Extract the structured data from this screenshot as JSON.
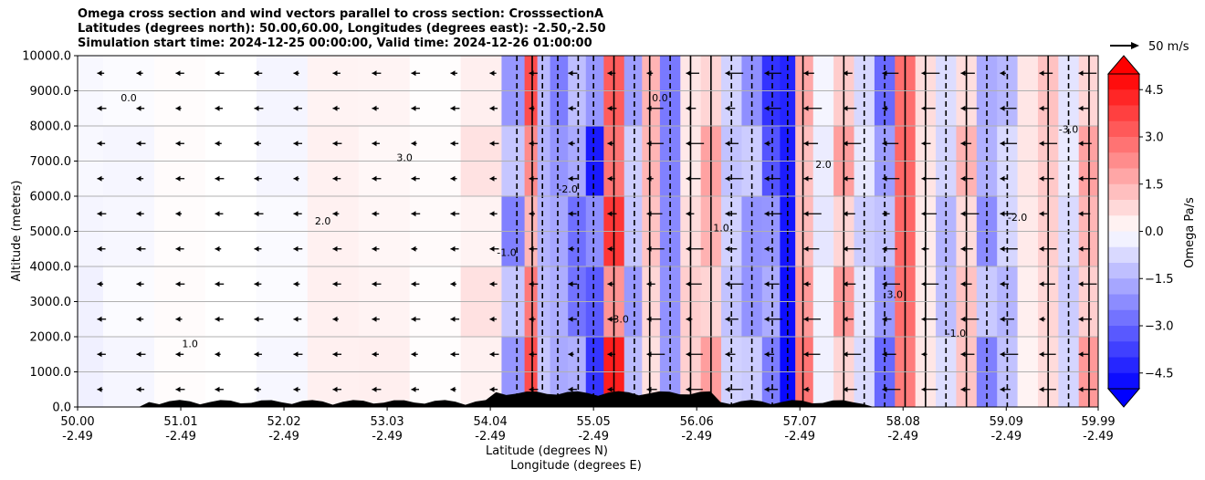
{
  "chart_data": {
    "type": "heatmap",
    "title_lines": [
      "Omega cross section and wind vectors parallel to cross section: CrosssectionA",
      "Latitudes (degrees north): 50.00,60.00, Longitudes (degrees east): -2.50,-2.50",
      "Simulation start time: 2024-12-25 00:00:00, Valid time: 2024-12-26 01:00:00"
    ],
    "ylabel": "Altitude (meters)",
    "xlabel_lines": [
      "Latitude (degrees N)",
      "Longitude (degrees E)"
    ],
    "x_ticks": [
      {
        "lat": "50.00",
        "lon": "-2.49",
        "v": 50.0
      },
      {
        "lat": "51.01",
        "lon": "-2.49",
        "v": 51.01
      },
      {
        "lat": "52.02",
        "lon": "-2.49",
        "v": 52.02
      },
      {
        "lat": "53.03",
        "lon": "-2.49",
        "v": 53.03
      },
      {
        "lat": "54.04",
        "lon": "-2.49",
        "v": 54.04
      },
      {
        "lat": "55.05",
        "lon": "-2.49",
        "v": 55.05
      },
      {
        "lat": "56.06",
        "lon": "-2.49",
        "v": 56.06
      },
      {
        "lat": "57.07",
        "lon": "-2.49",
        "v": 57.07
      },
      {
        "lat": "58.08",
        "lon": "-2.49",
        "v": 58.08
      },
      {
        "lat": "59.09",
        "lon": "-2.49",
        "v": 59.09
      },
      {
        "lat": "59.99",
        "lon": "-2.49",
        "v": 59.99
      }
    ],
    "y_ticks": [
      {
        "label": "0.0",
        "v": 0
      },
      {
        "label": "1000.0",
        "v": 1000
      },
      {
        "label": "2000.0",
        "v": 2000
      },
      {
        "label": "3000.0",
        "v": 3000
      },
      {
        "label": "4000.0",
        "v": 4000
      },
      {
        "label": "5000.0",
        "v": 5000
      },
      {
        "label": "6000.0",
        "v": 6000
      },
      {
        "label": "7000.0",
        "v": 7000
      },
      {
        "label": "8000.0",
        "v": 8000
      },
      {
        "label": "9000.0",
        "v": 9000
      },
      {
        "label": "10000.0",
        "v": 10000
      }
    ],
    "xlim": [
      50.0,
      59.99
    ],
    "ylim": [
      0,
      10000
    ],
    "grid": "horizontal",
    "colorbar": {
      "label": "Omega Pa/s",
      "ticks": [
        "4.5",
        "3.0",
        "1.5",
        "0.0",
        "−1.5",
        "−3.0",
        "−4.5"
      ],
      "tick_values": [
        4.5,
        3.0,
        1.5,
        0.0,
        -1.5,
        -3.0,
        -4.5
      ],
      "range": [
        -5.0,
        5.0
      ],
      "colormap": "bwr",
      "extend": "both"
    },
    "quiver_key": {
      "label": "50 m/s"
    },
    "contour_labels": [
      "0.0",
      "1.0",
      "2.0",
      "3.0",
      "-1.0",
      "-2.0",
      "-3.0"
    ],
    "omega_columns": [
      {
        "x": 50.0,
        "v": -0.3
      },
      {
        "x": 50.5,
        "v": -0.2
      },
      {
        "x": 51.0,
        "v": 0.1
      },
      {
        "x": 51.5,
        "v": 0.0
      },
      {
        "x": 52.0,
        "v": -0.2
      },
      {
        "x": 52.5,
        "v": 0.3
      },
      {
        "x": 53.0,
        "v": 0.4
      },
      {
        "x": 53.5,
        "v": 0.1
      },
      {
        "x": 54.0,
        "v": 0.6
      },
      {
        "x": 54.3,
        "v": -2.5
      },
      {
        "x": 54.45,
        "v": 3.5
      },
      {
        "x": 54.55,
        "v": -1.5
      },
      {
        "x": 54.7,
        "v": -4.0
      },
      {
        "x": 54.9,
        "v": -3.0
      },
      {
        "x": 55.05,
        "v": -4.5
      },
      {
        "x": 55.25,
        "v": 4.5
      },
      {
        "x": 55.45,
        "v": -2.0
      },
      {
        "x": 55.6,
        "v": 1.5
      },
      {
        "x": 55.8,
        "v": -3.5
      },
      {
        "x": 56.0,
        "v": 1.0
      },
      {
        "x": 56.2,
        "v": 2.0
      },
      {
        "x": 56.4,
        "v": -1.5
      },
      {
        "x": 56.6,
        "v": -2.5
      },
      {
        "x": 56.8,
        "v": -4.0
      },
      {
        "x": 56.95,
        "v": -5.0
      },
      {
        "x": 57.1,
        "v": 3.0
      },
      {
        "x": 57.3,
        "v": -0.5
      },
      {
        "x": 57.5,
        "v": 2.0
      },
      {
        "x": 57.7,
        "v": -1.0
      },
      {
        "x": 57.9,
        "v": -3.0
      },
      {
        "x": 58.1,
        "v": 3.0
      },
      {
        "x": 58.3,
        "v": 1.0
      },
      {
        "x": 58.5,
        "v": -1.5
      },
      {
        "x": 58.7,
        "v": 1.5
      },
      {
        "x": 58.9,
        "v": -2.5
      },
      {
        "x": 59.1,
        "v": -1.5
      },
      {
        "x": 59.3,
        "v": 0.5
      },
      {
        "x": 59.5,
        "v": 1.5
      },
      {
        "x": 59.7,
        "v": -1.0
      },
      {
        "x": 59.9,
        "v": 2.0
      }
    ]
  }
}
